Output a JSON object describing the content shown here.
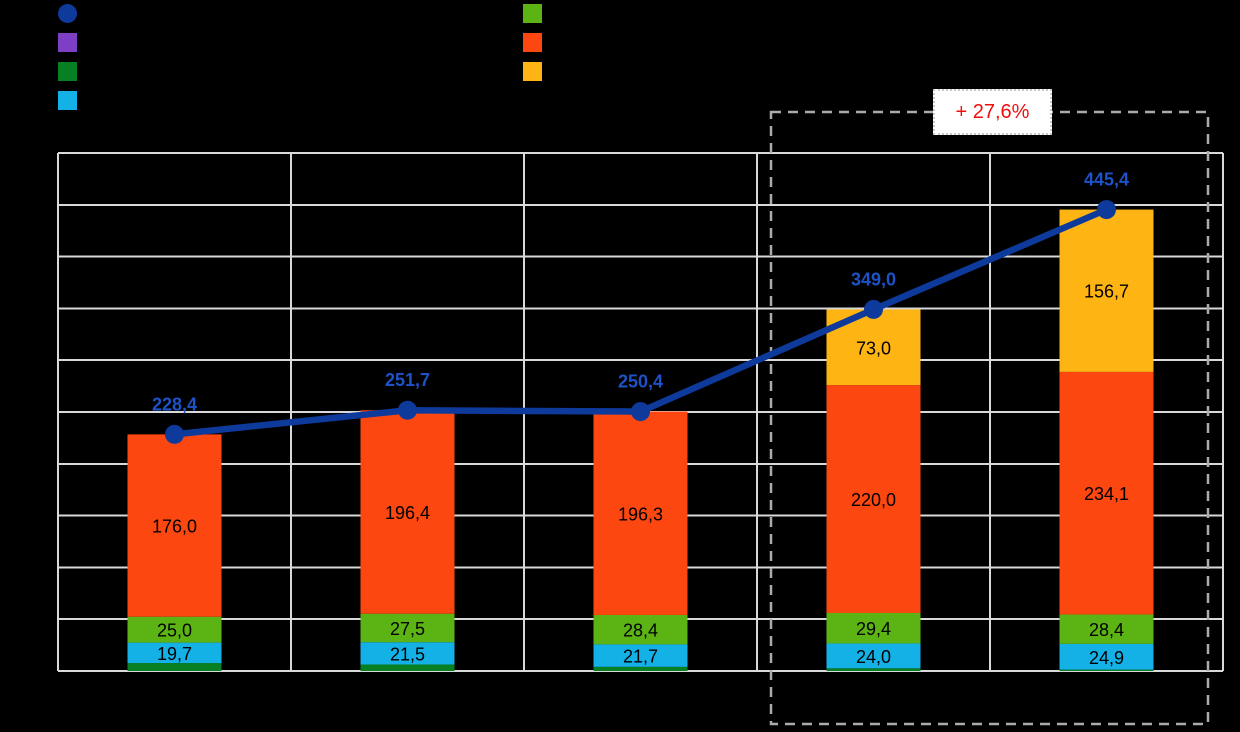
{
  "canvas": {
    "background": "#000000"
  },
  "legend": {
    "left_column": [
      {
        "name": "total-line",
        "marker": "circle",
        "color": "#0E3A9C",
        "label": ""
      },
      {
        "name": "purple-series",
        "marker": "square",
        "color": "#7D3FC4",
        "label": ""
      },
      {
        "name": "dark-green-series",
        "marker": "square",
        "color": "#077F23",
        "label": ""
      },
      {
        "name": "cyan-series",
        "marker": "square",
        "color": "#14B1E7",
        "label": ""
      }
    ],
    "right_column": [
      {
        "name": "light-green-series",
        "marker": "square",
        "color": "#5CB414",
        "label": ""
      },
      {
        "name": "orange-series",
        "marker": "square",
        "color": "#FC4711",
        "label": ""
      },
      {
        "name": "yellow-series",
        "marker": "square",
        "color": "#FEB413",
        "label": ""
      }
    ]
  },
  "annotation": {
    "text": "+ 27,6%",
    "text_color": "#F20D0D",
    "background": "#FFFFFF"
  },
  "chart_data": {
    "type": "bar",
    "subtype": "stacked-bars-with-total-line",
    "categories": [
      "",
      "",
      "",
      "",
      ""
    ],
    "x_tick_labels_visible": false,
    "y_tick_labels_visible": false,
    "ylim": [
      0,
      500
    ],
    "grid": true,
    "grid_step": 50,
    "gridline_color": "#D9D9D9",
    "segment_label_color": "#000000",
    "series": [
      {
        "name": "dark-green-segment",
        "color": "#077F23",
        "labels_visible": false,
        "values": [
          7.7,
          6.3,
          4.0,
          2.6,
          1.3
        ]
      },
      {
        "name": "cyan-segment",
        "color": "#14B1E7",
        "labels_visible": true,
        "values": [
          19.7,
          21.5,
          21.7,
          24.0,
          24.9
        ]
      },
      {
        "name": "light-green-segment",
        "color": "#5CB414",
        "labels_visible": true,
        "values": [
          25.0,
          27.5,
          28.4,
          29.4,
          28.4
        ]
      },
      {
        "name": "orange-segment",
        "color": "#FC4711",
        "labels_visible": true,
        "values": [
          176.0,
          196.4,
          196.3,
          220.0,
          234.1
        ]
      },
      {
        "name": "yellow-segment",
        "color": "#FEB413",
        "labels_visible": true,
        "values": [
          0,
          0,
          0,
          73.0,
          156.7
        ]
      }
    ],
    "line_series": {
      "name": "total-line",
      "color": "#0E3A9C",
      "label_color": "#1D52C8",
      "values": [
        228.4,
        251.7,
        250.4,
        349.0,
        445.4
      ]
    },
    "highlight": {
      "categories": [
        3,
        4
      ],
      "border_color": "#ABABAB",
      "annotation_text": "+ 27,6%"
    },
    "decimal_separator": ","
  }
}
